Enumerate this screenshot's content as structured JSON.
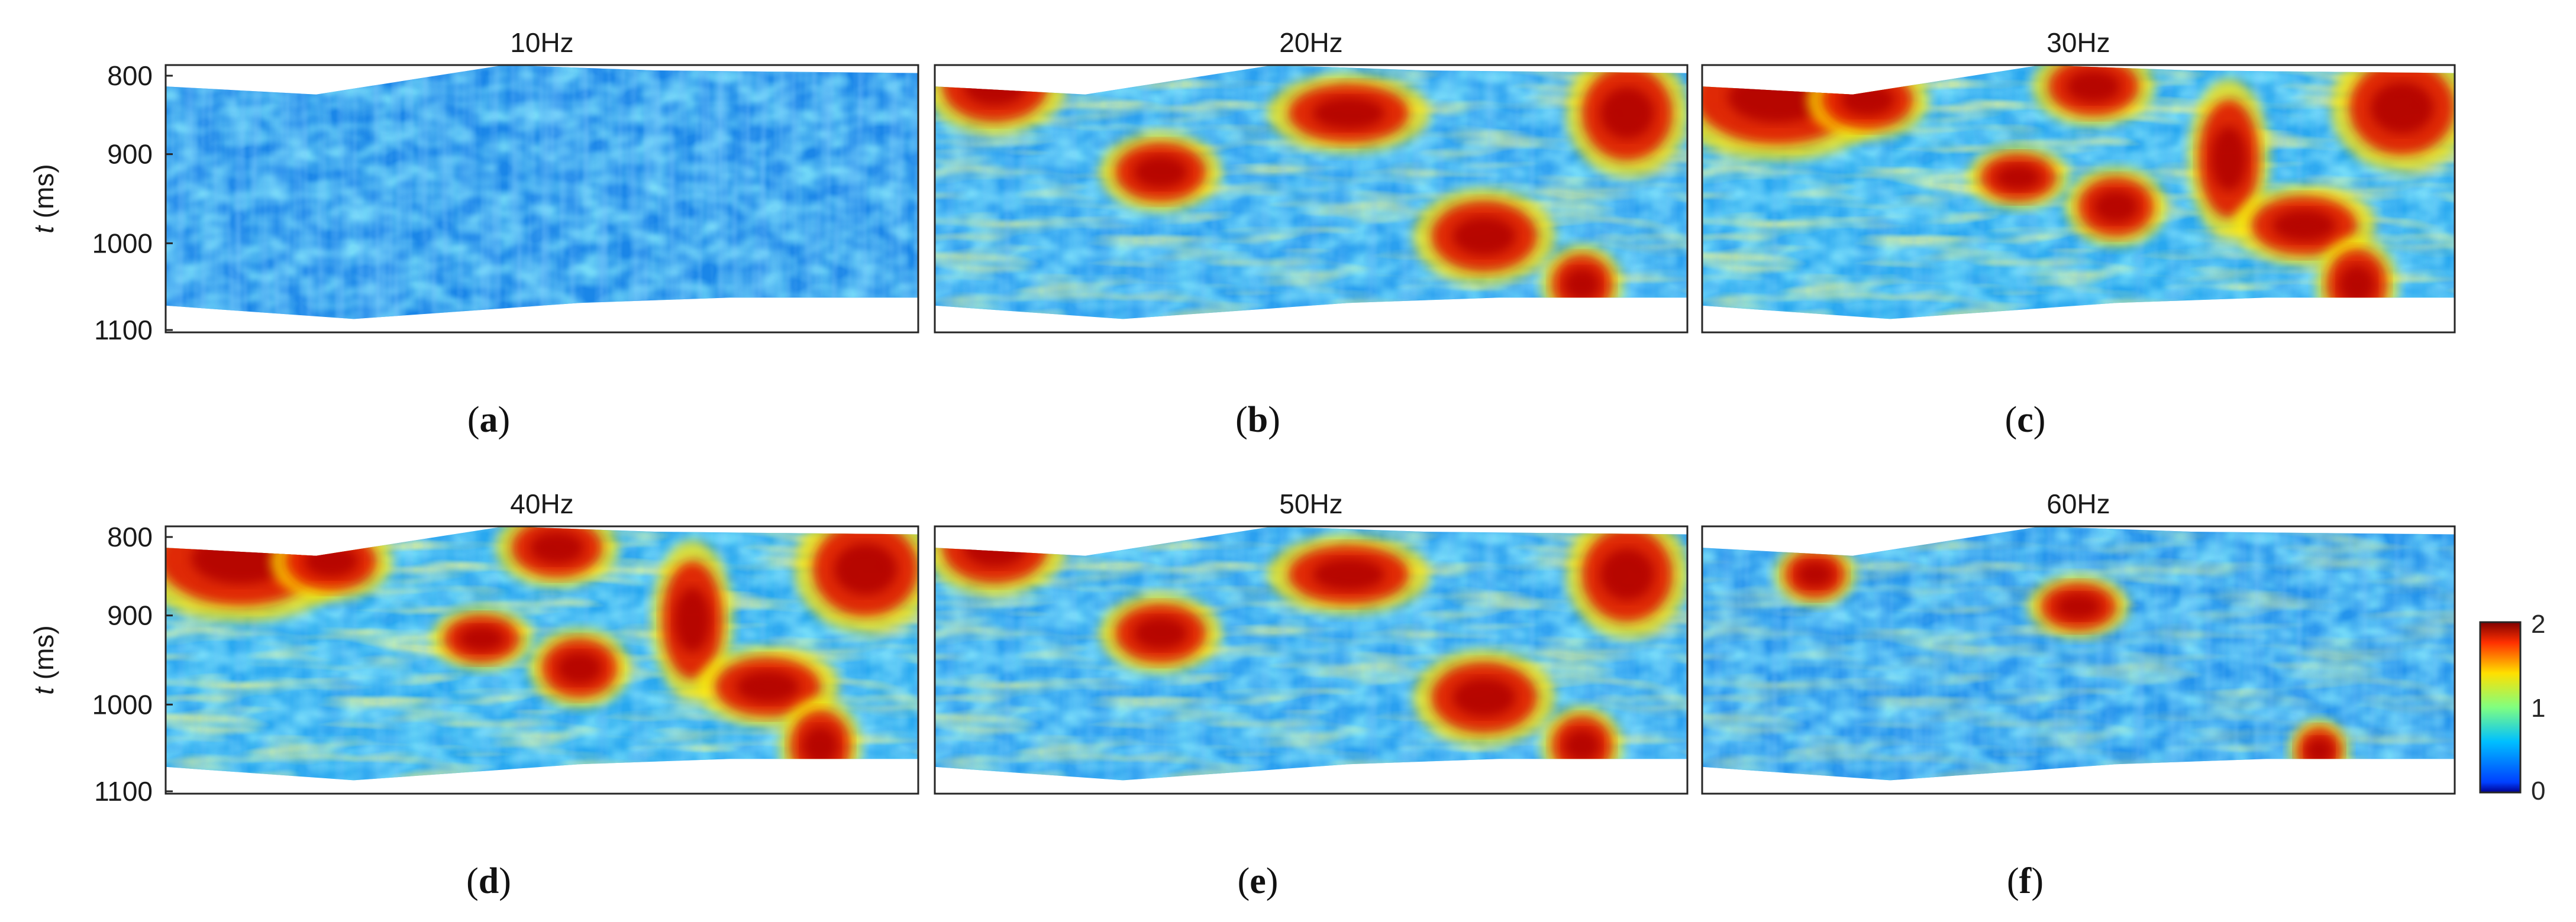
{
  "chart_data": [
    {
      "type": "heatmap",
      "title": "10Hz",
      "caption": "(a)",
      "ylabel": "t (ms)",
      "ylabel_var": "t",
      "ylabel_unit": " (ms)",
      "ylim": [
        800,
        1100
      ],
      "yticks": [
        800,
        900,
        1000,
        1100
      ],
      "yaxis_reversed": true,
      "hotspots": [],
      "level": "low"
    },
    {
      "type": "heatmap",
      "title": "20Hz",
      "caption": "(b)",
      "ylim": [
        800,
        1100
      ],
      "yaxis_reversed": true,
      "level": "medium"
    },
    {
      "type": "heatmap",
      "title": "30Hz",
      "caption": "(c)",
      "ylim": [
        800,
        1100
      ],
      "yaxis_reversed": true,
      "level": "high"
    },
    {
      "type": "heatmap",
      "title": "40Hz",
      "caption": "(d)",
      "ylabel": "t (ms)",
      "ylabel_var": "t",
      "ylabel_unit": " (ms)",
      "ylim": [
        800,
        1100
      ],
      "yticks": [
        800,
        900,
        1000,
        1100
      ],
      "yaxis_reversed": true,
      "level": "high"
    },
    {
      "type": "heatmap",
      "title": "50Hz",
      "caption": "(e)",
      "ylim": [
        800,
        1100
      ],
      "yaxis_reversed": true,
      "level": "medium"
    },
    {
      "type": "heatmap",
      "title": "60Hz",
      "caption": "(f)",
      "ylim": [
        800,
        1100
      ],
      "yaxis_reversed": true,
      "level": "low-medium"
    }
  ],
  "colorbar": {
    "min": 0,
    "max": 2,
    "ticks": [
      "2",
      "1",
      "0"
    ],
    "colormap": "jet"
  },
  "colors": {
    "low": "#0a5fd8",
    "mid": "#36d1e6",
    "high": "#b00000",
    "axis": "#262626"
  }
}
